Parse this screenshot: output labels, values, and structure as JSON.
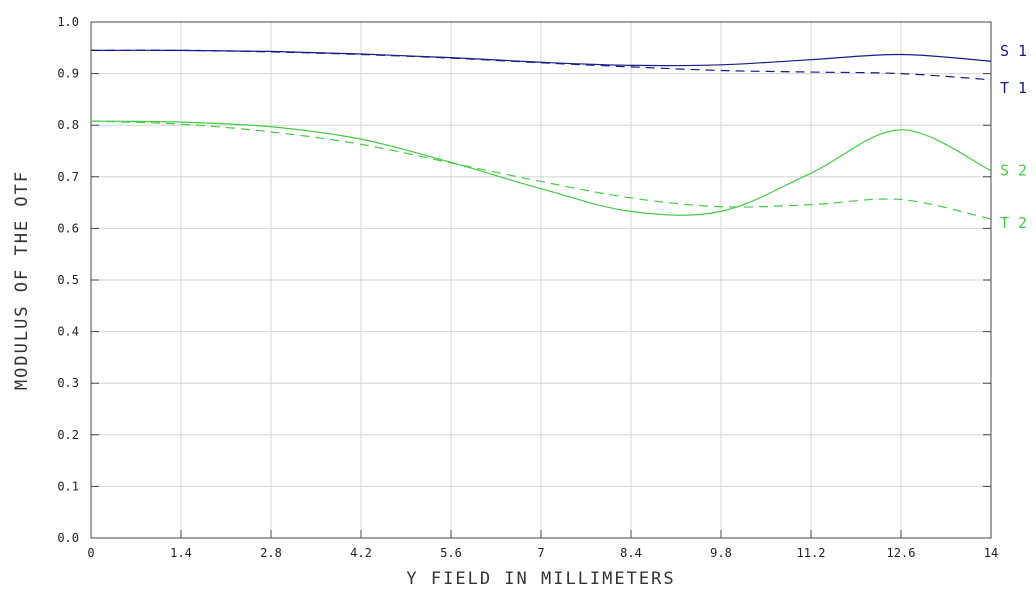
{
  "chart_data": {
    "type": "line",
    "title": "",
    "xlabel": "Y FIELD IN MILLIMETERS",
    "ylabel": "MODULUS OF THE OTF",
    "xlim": [
      0,
      14
    ],
    "ylim": [
      0,
      1.0
    ],
    "x_ticks": [
      0,
      1.4,
      2.8,
      4.2,
      5.6,
      7,
      8.4,
      9.8,
      11.2,
      12.6,
      14
    ],
    "x_tick_labels": [
      "0",
      "1.4",
      "2.8",
      "4.2",
      "5.6",
      "7",
      "8.4",
      "9.8",
      "11.2",
      "12.6",
      "14"
    ],
    "y_ticks": [
      0,
      0.1,
      0.2,
      0.3,
      0.4,
      0.5,
      0.6,
      0.7,
      0.8,
      0.9,
      1.0
    ],
    "y_tick_labels": [
      "0.0",
      "0.1",
      "0.2",
      "0.3",
      "0.4",
      "0.5",
      "0.6",
      "0.7",
      "0.8",
      "0.9",
      "1.0"
    ],
    "grid": true,
    "legend": "series labels at right end of each curve",
    "x": [
      0,
      1.4,
      2.8,
      4.2,
      5.6,
      7,
      8.4,
      9.8,
      11.2,
      12.6,
      14
    ],
    "series": [
      {
        "name": "S1",
        "color": "#1a1a8c",
        "dash": false,
        "values": [
          0.945,
          0.945,
          0.943,
          0.938,
          0.931,
          0.922,
          0.916,
          0.917,
          0.927,
          0.937,
          0.924
        ]
      },
      {
        "name": "T1",
        "color": "#1a1a8c",
        "dash": true,
        "values": [
          0.945,
          0.945,
          0.942,
          0.937,
          0.93,
          0.921,
          0.913,
          0.906,
          0.903,
          0.9,
          0.888
        ]
      },
      {
        "name": "S2",
        "color": "#44cc44",
        "dash": false,
        "values": [
          0.808,
          0.806,
          0.797,
          0.773,
          0.728,
          0.677,
          0.633,
          0.633,
          0.707,
          0.791,
          0.712
        ]
      },
      {
        "name": "T2",
        "color": "#44cc44",
        "dash": true,
        "values": [
          0.808,
          0.802,
          0.787,
          0.763,
          0.727,
          0.691,
          0.659,
          0.642,
          0.646,
          0.656,
          0.618
        ]
      }
    ]
  }
}
